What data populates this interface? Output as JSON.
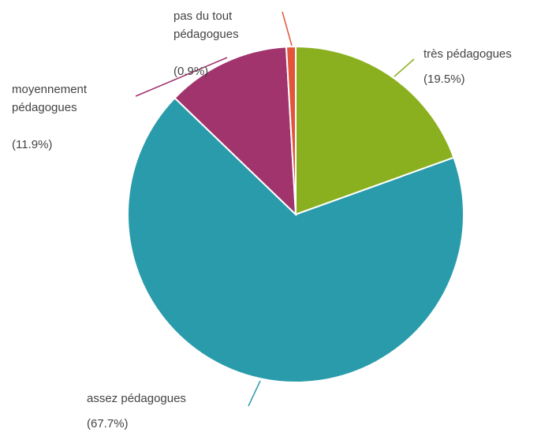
{
  "chart_data": {
    "type": "pie",
    "categories": [
      "très pédagogues",
      "assez pédagogues",
      "moyennement pédagogues",
      "pas du tout pédagogues"
    ],
    "values": [
      19.5,
      67.7,
      11.9,
      0.9
    ],
    "value_labels": [
      "(19.5%)",
      "(67.7%)",
      "(11.9%)",
      "(0.9%)"
    ],
    "colors": [
      "#8bb01f",
      "#2a9bab",
      "#a1346c",
      "#e2553a"
    ]
  }
}
